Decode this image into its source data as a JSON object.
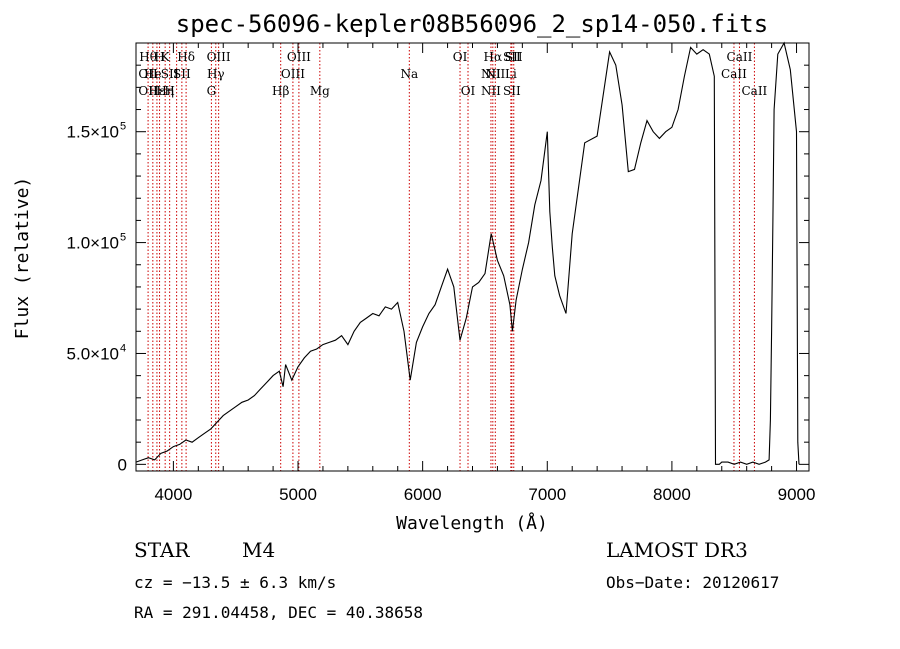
{
  "chart_data": {
    "type": "line",
    "title": "spec-56096-kepler08B56096_2_sp14-050.fits",
    "xlabel": "Wavelength (Å)",
    "ylabel": "Flux (relative)",
    "xlim": [
      3700,
      9100
    ],
    "ylim": [
      -3000,
      190000
    ],
    "x_ticks": [
      4000,
      5000,
      6000,
      7000,
      8000,
      9000
    ],
    "x_tick_labels": [
      "4000",
      "5000",
      "6000",
      "7000",
      "8000",
      "9000"
    ],
    "y_ticks": [
      0,
      50000,
      100000,
      150000
    ],
    "y_tick_labels": [
      "0",
      "5.0×10",
      "1.0×10",
      "1.5×10"
    ],
    "y_tick_exponents": [
      "",
      "4",
      "5",
      "5"
    ],
    "series": [
      {
        "name": "flux",
        "color": "#000000",
        "x": [
          3700,
          3750,
          3800,
          3850,
          3900,
          3950,
          4000,
          4050,
          4100,
          4150,
          4200,
          4250,
          4300,
          4350,
          4400,
          4450,
          4500,
          4550,
          4600,
          4650,
          4700,
          4750,
          4800,
          4850,
          4880,
          4900,
          4950,
          5000,
          5050,
          5100,
          5150,
          5200,
          5250,
          5300,
          5350,
          5400,
          5450,
          5500,
          5550,
          5600,
          5650,
          5700,
          5750,
          5800,
          5850,
          5900,
          5950,
          6000,
          6050,
          6100,
          6150,
          6200,
          6250,
          6300,
          6350,
          6400,
          6450,
          6500,
          6550,
          6600,
          6650,
          6700,
          6720,
          6750,
          6800,
          6850,
          6900,
          6950,
          7000,
          7020,
          7040,
          7060,
          7100,
          7150,
          7200,
          7300,
          7400,
          7500,
          7550,
          7600,
          7650,
          7700,
          7750,
          7800,
          7850,
          7900,
          7950,
          8000,
          8050,
          8100,
          8150,
          8200,
          8250,
          8300,
          8340,
          8350,
          8370,
          8380,
          8400,
          8450,
          8500,
          8550,
          8600,
          8650,
          8700,
          8750,
          8780,
          8790,
          8800,
          8810,
          8820,
          8850,
          8900,
          8950,
          9000,
          9010,
          9020
        ],
        "y": [
          1000,
          2000,
          3000,
          2000,
          5000,
          6000,
          8000,
          9000,
          11000,
          10000,
          12000,
          14000,
          16000,
          19000,
          22000,
          24000,
          26000,
          28000,
          29000,
          31000,
          34000,
          37000,
          40000,
          42000,
          35000,
          45000,
          38000,
          44000,
          48000,
          51000,
          52000,
          54000,
          55000,
          56000,
          58000,
          54000,
          60000,
          64000,
          66000,
          68000,
          67000,
          71000,
          70000,
          73000,
          60000,
          38000,
          55000,
          62000,
          68000,
          72000,
          80000,
          88000,
          80000,
          56000,
          66000,
          80000,
          82000,
          86000,
          104000,
          92000,
          85000,
          72000,
          60000,
          74000,
          88000,
          100000,
          117000,
          128000,
          150000,
          114000,
          98000,
          85000,
          76000,
          68000,
          104000,
          145000,
          148000,
          186000,
          180000,
          162000,
          132000,
          133000,
          145000,
          155000,
          150000,
          147000,
          150000,
          152000,
          160000,
          175000,
          188000,
          185000,
          187000,
          185000,
          175000,
          0,
          0,
          0,
          1000,
          1000,
          0,
          1000,
          0,
          1000,
          0,
          1000,
          2000,
          20000,
          60000,
          110000,
          160000,
          185000,
          190000,
          178000,
          150000,
          10000,
          0
        ]
      }
    ],
    "line_labels": [
      {
        "x": 3797,
        "row1": "Hθ",
        "row2": "OII",
        "row3": "OII"
      },
      {
        "x": 3835,
        "row2": "He"
      },
      {
        "x": 3868,
        "row3": "Hε"
      },
      {
        "x": 3889,
        "row1": "H"
      },
      {
        "x": 3934,
        "row1": "K",
        "row3": "Hη"
      },
      {
        "x": 3970,
        "row2": "SII",
        "row3": "H"
      },
      {
        "x": 4026,
        "row2": "I"
      },
      {
        "x": 4068,
        "row2": "SII"
      },
      {
        "x": 4102,
        "row1": "Hδ"
      },
      {
        "x": 4305,
        "row3": "G"
      },
      {
        "x": 4340,
        "row2": "Hγ"
      },
      {
        "x": 4363,
        "row1": "OIII"
      },
      {
        "x": 4861,
        "row3": "Hβ"
      },
      {
        "x": 4959,
        "row2": "OIII"
      },
      {
        "x": 5007,
        "row1": "OIII"
      },
      {
        "x": 5175,
        "row3": "Mg"
      },
      {
        "x": 5893,
        "row2": "Na"
      },
      {
        "x": 6300,
        "row1": "OI"
      },
      {
        "x": 6364,
        "row3": "OI"
      },
      {
        "x": 6548,
        "row2": "NII",
        "row3": "NII"
      },
      {
        "x": 6563,
        "row1": "Hα"
      },
      {
        "x": 6583,
        "row2": "NII"
      },
      {
        "x": 6708,
        "row2": "Li"
      },
      {
        "x": 6716,
        "row1": "SII",
        "row3": "SII"
      },
      {
        "x": 6731,
        "row1": "SII"
      },
      {
        "x": 8498,
        "row2": "CaII"
      },
      {
        "x": 8542,
        "row1": "CaII"
      },
      {
        "x": 8662,
        "row3": "CaII"
      }
    ]
  },
  "info": {
    "object_type": "STAR",
    "subclass": "M4",
    "survey": "LAMOST DR3",
    "cz": "cz = −13.5 ± 6.3 km/s",
    "obs_date": "Obs−Date: 20120617",
    "coords": "RA = 291.04458, DEC =  40.38658"
  },
  "colors": {
    "line_marker": "#cc0000",
    "spectrum": "#000000",
    "axes": "#000000"
  }
}
